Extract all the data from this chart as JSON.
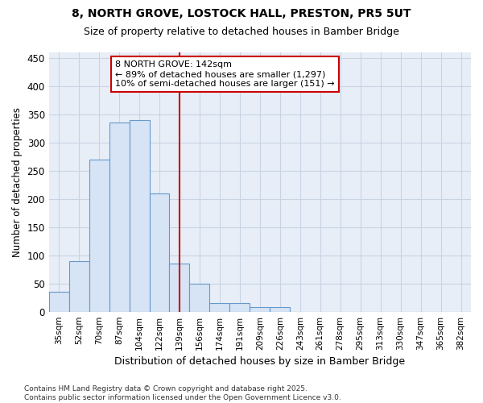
{
  "title1": "8, NORTH GROVE, LOSTOCK HALL, PRESTON, PR5 5UT",
  "title2": "Size of property relative to detached houses in Bamber Bridge",
  "xlabel": "Distribution of detached houses by size in Bamber Bridge",
  "ylabel": "Number of detached properties",
  "bin_labels": [
    "35sqm",
    "52sqm",
    "70sqm",
    "87sqm",
    "104sqm",
    "122sqm",
    "139sqm",
    "156sqm",
    "174sqm",
    "191sqm",
    "209sqm",
    "226sqm",
    "243sqm",
    "261sqm",
    "278sqm",
    "295sqm",
    "313sqm",
    "330sqm",
    "347sqm",
    "365sqm",
    "382sqm"
  ],
  "bar_heights": [
    35,
    90,
    270,
    335,
    340,
    210,
    85,
    50,
    15,
    15,
    8,
    8,
    0,
    0,
    0,
    0,
    0,
    0,
    0,
    0,
    0
  ],
  "bar_color": "#d6e4f5",
  "bar_edge_color": "#6699cc",
  "red_line_x": 6,
  "property_label": "8 NORTH GROVE: 142sqm",
  "annotation_line1": "← 89% of detached houses are smaller (1,297)",
  "annotation_line2": "10% of semi-detached houses are larger (151) →",
  "annotation_box_facecolor": "#ffffff",
  "annotation_box_edgecolor": "#cc0000",
  "ylim": [
    0,
    460
  ],
  "yticks": [
    0,
    50,
    100,
    150,
    200,
    250,
    300,
    350,
    400,
    450
  ],
  "plot_bg_color": "#e8eef7",
  "fig_bg_color": "#ffffff",
  "grid_color": "#c8d4e4",
  "footer": "Contains HM Land Registry data © Crown copyright and database right 2025.\nContains public sector information licensed under the Open Government Licence v3.0."
}
